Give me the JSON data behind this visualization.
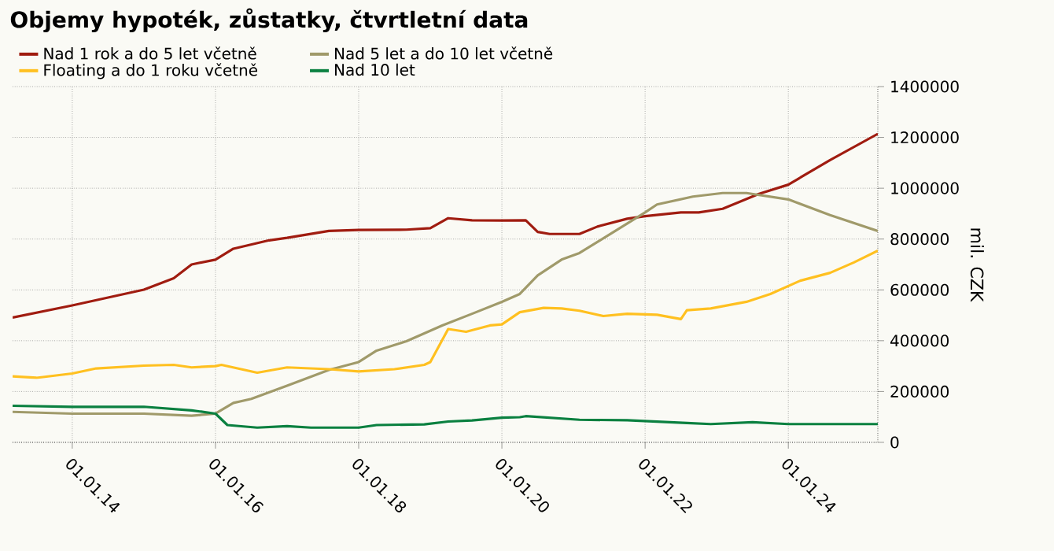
{
  "chart_data": {
    "type": "line",
    "title": "Objemy hypoték, zůstatky, čtvrtletní data",
    "ylabel": "mil. CZK",
    "xlim": [
      "2013-03",
      "2025-04"
    ],
    "xticks": [
      {
        "value": "2014-01-01",
        "label": "01.01.14"
      },
      {
        "value": "2016-01-01",
        "label": "01.01.16"
      },
      {
        "value": "2018-01-01",
        "label": "01.01.18"
      },
      {
        "value": "2020-01-01",
        "label": "01.01.20"
      },
      {
        "value": "2022-01-01",
        "label": "01.01.22"
      },
      {
        "value": "2024-01-01",
        "label": "01.01.24"
      }
    ],
    "ylim": [
      0,
      1400000
    ],
    "yticks": [
      0,
      200000,
      400000,
      600000,
      800000,
      1000000,
      1200000,
      1400000
    ],
    "grid": true,
    "legend": "top",
    "series": [
      {
        "name": "Nad 1 rok a do 5 let včetně",
        "color": "#a01c10",
        "x": [
          "2013-03",
          "2014-01",
          "2015-01",
          "2015-06",
          "2015-09",
          "2016-01",
          "2016-04",
          "2016-10",
          "2017-01",
          "2017-08",
          "2018-01",
          "2018-09",
          "2019-01",
          "2019-04",
          "2019-08",
          "2020-01",
          "2020-05",
          "2020-07",
          "2020-09",
          "2021-02",
          "2021-05",
          "2021-10",
          "2022-01",
          "2022-07",
          "2022-10",
          "2023-02",
          "2023-08",
          "2024-01",
          "2024-08",
          "2025-04"
        ],
        "values": [
          491000,
          539000,
          601000,
          646000,
          700000,
          719000,
          762000,
          795000,
          805000,
          832000,
          836000,
          837000,
          843000,
          882000,
          874000,
          873000,
          874000,
          828000,
          820000,
          820000,
          849000,
          880000,
          890000,
          905000,
          905000,
          919000,
          977000,
          1014000,
          1111000,
          1214000
        ]
      },
      {
        "name": "Nad 5 let a do 10 let včetně",
        "color": "#a09a6a",
        "x": [
          "2013-03",
          "2014-01",
          "2015-01",
          "2015-09",
          "2016-01",
          "2016-04",
          "2016-07",
          "2017-01",
          "2017-08",
          "2018-01",
          "2018-04",
          "2018-09",
          "2019-03",
          "2019-08",
          "2020-01",
          "2020-04",
          "2020-07",
          "2020-11",
          "2021-02",
          "2021-08",
          "2022-01",
          "2022-03",
          "2022-09",
          "2023-02",
          "2023-06",
          "2024-01",
          "2024-08",
          "2025-04"
        ],
        "values": [
          120000,
          113000,
          113000,
          105000,
          113000,
          155000,
          171000,
          223000,
          285000,
          316000,
          361000,
          398000,
          460000,
          506000,
          553000,
          584000,
          657000,
          719000,
          745000,
          832000,
          905000,
          936000,
          967000,
          981000,
          981000,
          956000,
          894000,
          832000
        ]
      },
      {
        "name": "Floating a do 1 roku včetně",
        "color": "#ffc020",
        "x": [
          "2013-03",
          "2013-07",
          "2014-01",
          "2014-05",
          "2015-01",
          "2015-06",
          "2015-09",
          "2016-01",
          "2016-02",
          "2016-08",
          "2017-01",
          "2017-08",
          "2018-01",
          "2018-07",
          "2018-12",
          "2019-01",
          "2019-04",
          "2019-07",
          "2019-11",
          "2020-01",
          "2020-04",
          "2020-08",
          "2020-11",
          "2021-02",
          "2021-06",
          "2021-10",
          "2022-03",
          "2022-07",
          "2022-08",
          "2022-12",
          "2023-06",
          "2023-10",
          "2024-03",
          "2024-08",
          "2024-12",
          "2025-04"
        ],
        "values": [
          260000,
          254000,
          271000,
          291000,
          302000,
          305000,
          295000,
          300000,
          305000,
          274000,
          295000,
          288000,
          279000,
          288000,
          305000,
          316000,
          446000,
          435000,
          460000,
          464000,
          512000,
          529000,
          527000,
          518000,
          497000,
          506000,
          502000,
          485000,
          520000,
          527000,
          553000,
          584000,
          636000,
          667000,
          708000,
          754000
        ]
      },
      {
        "name": "Nad 10 let",
        "color": "#0a8040",
        "x": [
          "2013-03",
          "2014-01",
          "2015-01",
          "2015-09",
          "2016-01",
          "2016-03",
          "2016-08",
          "2017-01",
          "2017-05",
          "2018-01",
          "2018-04",
          "2018-12",
          "2019-04",
          "2019-08",
          "2020-01",
          "2020-04",
          "2020-05",
          "2021-02",
          "2021-10",
          "2022-08",
          "2022-12",
          "2023-07",
          "2024-01",
          "2025-04"
        ],
        "values": [
          144000,
          140000,
          140000,
          126000,
          113000,
          68000,
          58000,
          64000,
          58000,
          58000,
          68000,
          71000,
          82000,
          86000,
          97000,
          99000,
          103000,
          89000,
          87000,
          76000,
          72000,
          79000,
          72000,
          72000
        ]
      }
    ]
  }
}
